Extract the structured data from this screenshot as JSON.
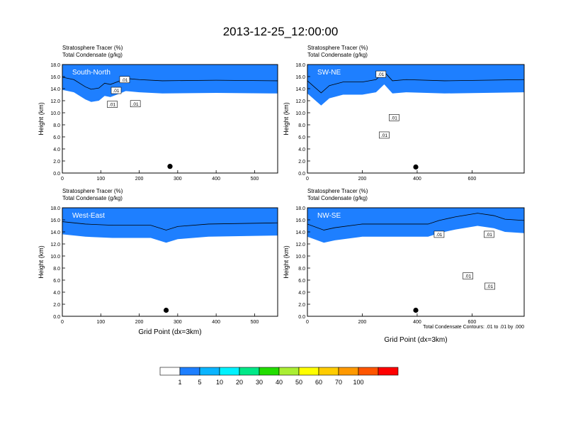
{
  "title": "2013-12-25_12:00:00",
  "chart_data": [
    {
      "type": "heatmap",
      "panel_label": "South-North",
      "header": [
        "Stratosphere Tracer   (%)",
        "Total Condensate   (g/kg)"
      ],
      "xlim": [
        0,
        560
      ],
      "xticks": [
        0,
        100,
        200,
        300,
        400,
        500
      ],
      "ylim": [
        0,
        18
      ],
      "yticks": [
        "0.0",
        "2.0",
        "4.0",
        "6.0",
        "8.0",
        "10.0",
        "12.0",
        "14.0",
        "16.0",
        "18.0"
      ],
      "ylabel": "Height (km)",
      "xlabel": "",
      "tropopause_km": [
        [
          0,
          15.6
        ],
        [
          30,
          15.2
        ],
        [
          60,
          14.0
        ],
        [
          75,
          13.6
        ],
        [
          95,
          13.8
        ],
        [
          110,
          14.6
        ],
        [
          125,
          14.4
        ],
        [
          150,
          15.0
        ],
        [
          165,
          15.4
        ],
        [
          200,
          15.2
        ],
        [
          260,
          15.0
        ],
        [
          400,
          15.1
        ],
        [
          560,
          15.0
        ]
      ],
      "contour_labels": [
        {
          "x": 140,
          "y": 13.7,
          "text": ".01"
        },
        {
          "x": 162,
          "y": 15.5,
          "text": ".01"
        },
        {
          "x": 130,
          "y": 11.4,
          "text": ".01"
        },
        {
          "x": 190,
          "y": 11.5,
          "text": ".01"
        }
      ],
      "marker": {
        "x": 280,
        "y": 1.1
      }
    },
    {
      "type": "heatmap",
      "panel_label": "SW-NE",
      "header": [
        "Stratosphere Tracer   (%)",
        "Total Condensate   (g/kg)"
      ],
      "xlim": [
        0,
        790
      ],
      "xticks": [
        0,
        200,
        400,
        600
      ],
      "ylim": [
        0,
        18
      ],
      "yticks": [
        "0.0",
        "2.0",
        "4.0",
        "6.0",
        "8.0",
        "10.0",
        "12.0",
        "14.0",
        "16.0",
        "18.0"
      ],
      "ylabel": "Height (km)",
      "xlabel": "",
      "tropopause_km": [
        [
          0,
          15.0
        ],
        [
          30,
          13.8
        ],
        [
          50,
          13.0
        ],
        [
          80,
          14.2
        ],
        [
          130,
          14.8
        ],
        [
          200,
          14.8
        ],
        [
          250,
          15.2
        ],
        [
          280,
          16.5
        ],
        [
          310,
          15.0
        ],
        [
          360,
          15.2
        ],
        [
          500,
          15.0
        ],
        [
          790,
          15.2
        ]
      ],
      "contour_labels": [
        {
          "x": 268,
          "y": 16.4,
          "text": ".01"
        },
        {
          "x": 316,
          "y": 9.2,
          "text": ".01"
        },
        {
          "x": 280,
          "y": 6.3,
          "text": ".01"
        }
      ],
      "marker": {
        "x": 395,
        "y": 1.0
      }
    },
    {
      "type": "heatmap",
      "panel_label": "West-East",
      "header": [
        "Stratosphere Tracer   (%)",
        "Total Condensate   (g/kg)"
      ],
      "xlim": [
        0,
        560
      ],
      "xticks": [
        0,
        100,
        200,
        300,
        400,
        500
      ],
      "ylim": [
        0,
        18
      ],
      "yticks": [
        "0.0",
        "2.0",
        "4.0",
        "6.0",
        "8.0",
        "10.0",
        "12.0",
        "14.0",
        "16.0",
        "18.0"
      ],
      "ylabel": "Height (km)",
      "xlabel": "Grid Point (dx=3km)",
      "tropopause_km": [
        [
          0,
          15.4
        ],
        [
          60,
          15.0
        ],
        [
          130,
          14.8
        ],
        [
          230,
          14.8
        ],
        [
          270,
          14.0
        ],
        [
          300,
          14.6
        ],
        [
          380,
          15.0
        ],
        [
          560,
          15.2
        ]
      ],
      "contour_labels": [],
      "marker": {
        "x": 270,
        "y": 1.0
      }
    },
    {
      "type": "heatmap",
      "panel_label": "NW-SE",
      "header": [
        "Stratosphere Tracer   (%)",
        "Total Condensate   (g/kg)"
      ],
      "xlim": [
        0,
        790
      ],
      "xticks": [
        0,
        200,
        400,
        600
      ],
      "ylim": [
        0,
        18
      ],
      "yticks": [
        "0.0",
        "2.0",
        "4.0",
        "6.0",
        "8.0",
        "10.0",
        "12.0",
        "14.0",
        "16.0",
        "18.0"
      ],
      "ylabel": "Height (km)",
      "xlabel": "Grid Point (dx=3km)",
      "tropopause_km": [
        [
          0,
          15.0
        ],
        [
          60,
          14.0
        ],
        [
          100,
          14.4
        ],
        [
          200,
          15.0
        ],
        [
          440,
          15.0
        ],
        [
          480,
          15.6
        ],
        [
          540,
          16.2
        ],
        [
          620,
          16.8
        ],
        [
          680,
          16.4
        ],
        [
          720,
          15.8
        ],
        [
          790,
          15.6
        ]
      ],
      "contour_labels": [
        {
          "x": 480,
          "y": 13.6,
          "text": ".01"
        },
        {
          "x": 662,
          "y": 13.6,
          "text": ".01"
        },
        {
          "x": 585,
          "y": 6.7,
          "text": ".01"
        },
        {
          "x": 665,
          "y": 5.0,
          "text": ".01"
        }
      ],
      "marker": {
        "x": 395,
        "y": 1.0
      }
    }
  ],
  "contour_note": "Total Condensate Contours: .01 to .01 by .000",
  "colorbar": {
    "labels": [
      "1",
      "5",
      "10",
      "20",
      "30",
      "40",
      "50",
      "60",
      "70",
      "100"
    ],
    "colors": [
      "#ffffff",
      "#1e7fff",
      "#0ab4ff",
      "#00f2ff",
      "#00e888",
      "#22dd00",
      "#aaee33",
      "#ffff00",
      "#ffcc00",
      "#ff9900",
      "#ff5500",
      "#ff0000"
    ]
  }
}
